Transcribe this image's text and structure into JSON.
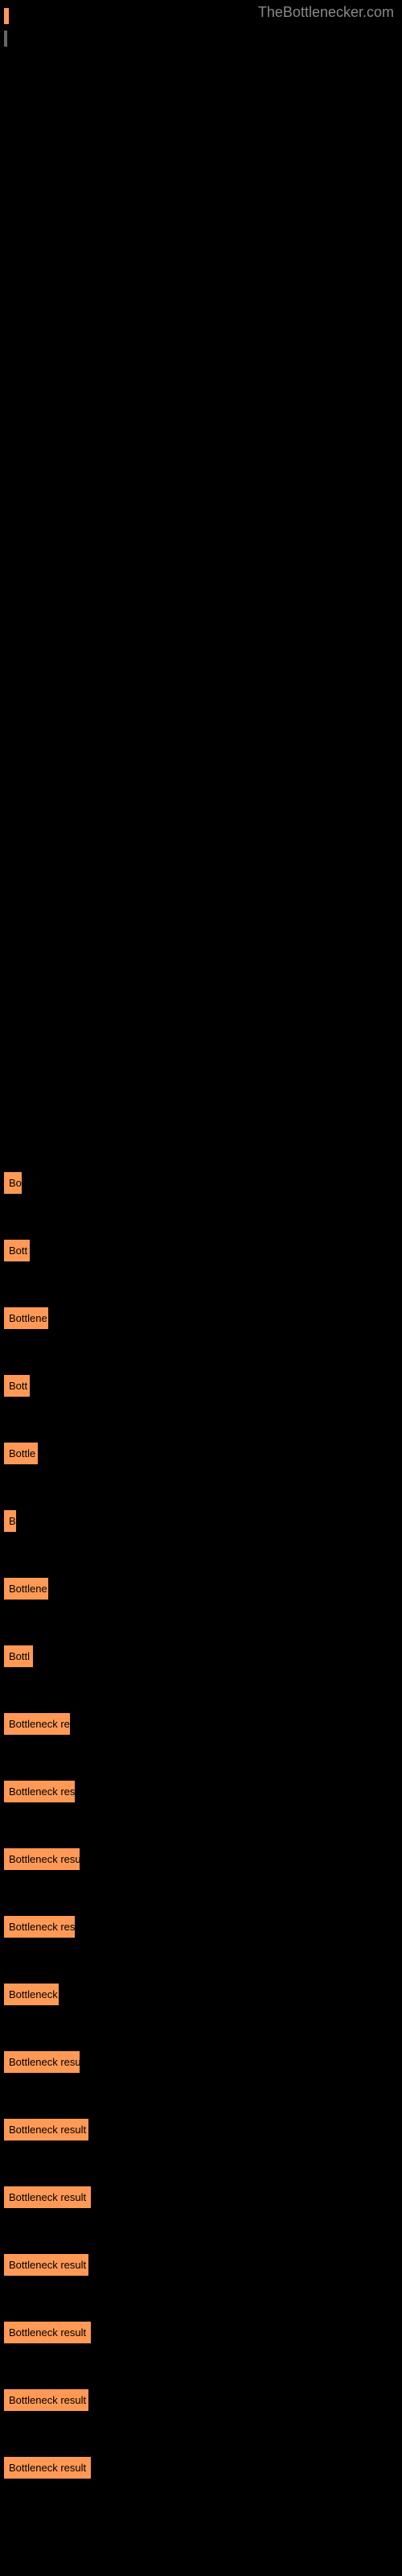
{
  "watermark": "TheBottlenecker.com",
  "bottleneck_items": [
    {
      "label": "Bo",
      "width": 22
    },
    {
      "label": "Bott",
      "width": 32
    },
    {
      "label": "Bottlene",
      "width": 55
    },
    {
      "label": "Bott",
      "width": 32
    },
    {
      "label": "Bottle",
      "width": 42
    },
    {
      "label": "B",
      "width": 15
    },
    {
      "label": "Bottlene",
      "width": 55
    },
    {
      "label": "Bottl",
      "width": 36
    },
    {
      "label": "Bottleneck re",
      "width": 82
    },
    {
      "label": "Bottleneck res",
      "width": 88
    },
    {
      "label": "Bottleneck resu",
      "width": 94
    },
    {
      "label": "Bottleneck res",
      "width": 88
    },
    {
      "label": "Bottleneck",
      "width": 68
    },
    {
      "label": "Bottleneck resu",
      "width": 94
    },
    {
      "label": "Bottleneck result",
      "width": 105
    },
    {
      "label": "Bottleneck result",
      "width": 108
    },
    {
      "label": "Bottleneck result",
      "width": 105
    },
    {
      "label": "Bottleneck result",
      "width": 108
    },
    {
      "label": "Bottleneck result",
      "width": 105
    },
    {
      "label": "Bottleneck result",
      "width": 108
    }
  ],
  "colors": {
    "background": "#000000",
    "bar_color": "#ff9955",
    "text_color": "#000000",
    "watermark_color": "#888888",
    "gray_bar": "#666666"
  }
}
